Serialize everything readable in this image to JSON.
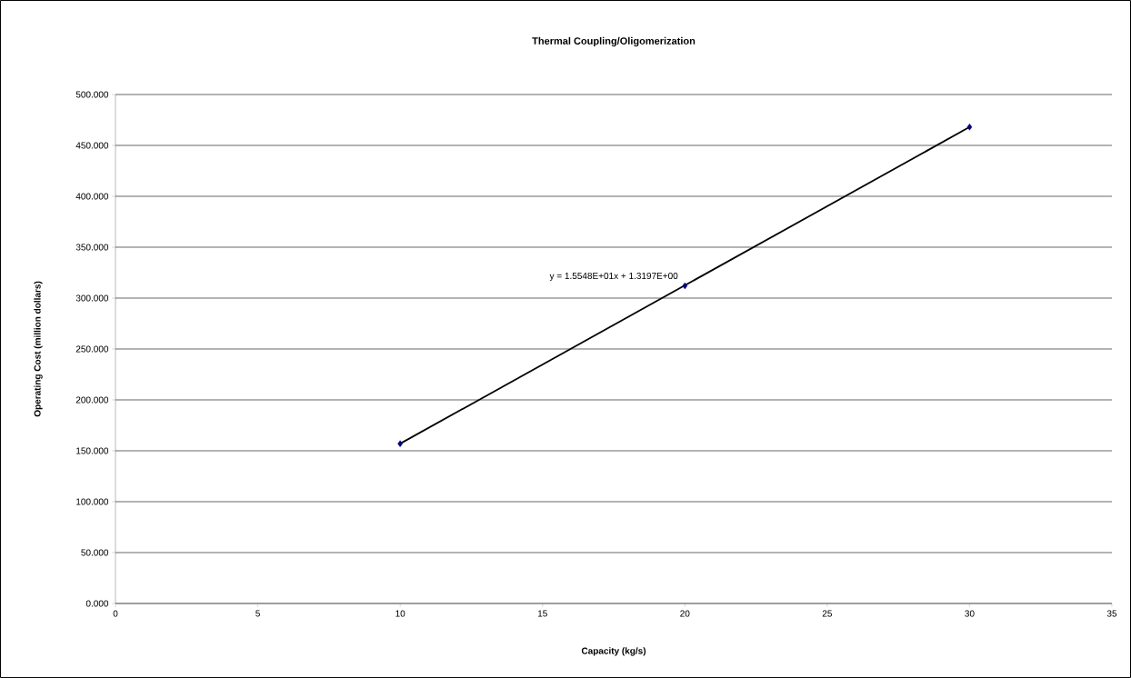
{
  "chart_data": {
    "type": "scatter",
    "title": "Thermal Coupling/Oligomerization",
    "xlabel": "Capacity (kg/s)",
    "ylabel": "Operating Cost (million dollars)",
    "x": [
      10,
      20,
      30
    ],
    "series": [
      {
        "color": "#000080",
        "marker": "diamond",
        "values": [
          157,
          312,
          468
        ]
      },
      {
        "type": "line",
        "color": "#000000",
        "marker": "none",
        "line_style": "solid",
        "x": [
          10,
          30
        ],
        "values": [
          157,
          468
        ]
      }
    ],
    "annotations": [
      {
        "text": "y = 1.5548E+01x + 1.3197E+00",
        "x": 20,
        "y": 312
      }
    ],
    "xlim": [
      0,
      35
    ],
    "xticks": [
      0,
      5,
      10,
      15,
      20,
      25,
      30,
      35
    ],
    "ylim": [
      0,
      500
    ],
    "yticks": [
      {
        "value": 0,
        "label": "0.000"
      },
      {
        "value": 50,
        "label": "50.000"
      },
      {
        "value": 100,
        "label": "100.000"
      },
      {
        "value": 150,
        "label": "150.000"
      },
      {
        "value": 200,
        "label": "200.000"
      },
      {
        "value": 250,
        "label": "250.000"
      },
      {
        "value": 300,
        "label": "300.000"
      },
      {
        "value": 350,
        "label": "350.000"
      },
      {
        "value": 400,
        "label": "400.000"
      },
      {
        "value": 450,
        "label": "450.000"
      },
      {
        "value": 500,
        "label": "500.000"
      }
    ],
    "grid": "y"
  }
}
